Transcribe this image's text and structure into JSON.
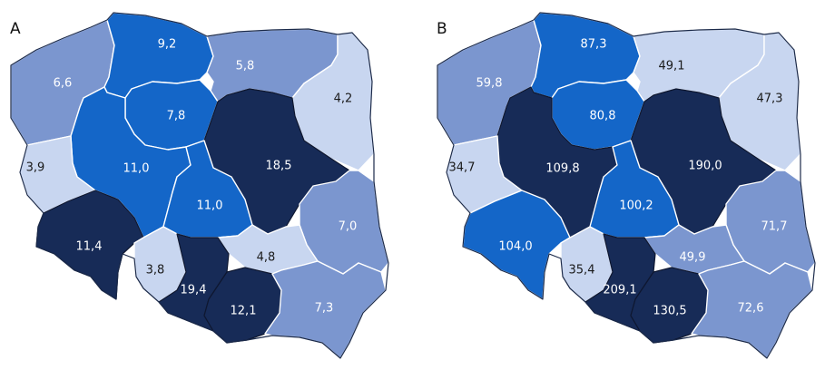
{
  "colors": {
    "tier_light": "#c8d6f0",
    "tier_mid": "#7b96cf",
    "tier_bright": "#1466c8",
    "tier_dark": "#172b57",
    "text_light": "#ffffff",
    "text_dark": "#1a1a1a"
  },
  "maps": [
    {
      "label": "A",
      "regions": [
        {
          "value": "6,6",
          "tier": "mid"
        },
        {
          "value": "9,2",
          "tier": "bright"
        },
        {
          "value": "5,8",
          "tier": "mid"
        },
        {
          "value": "4,2",
          "tier": "light"
        },
        {
          "value": "7,8",
          "tier": "bright"
        },
        {
          "value": "11,0",
          "tier": "bright"
        },
        {
          "value": "3,9",
          "tier": "light"
        },
        {
          "value": "18,5",
          "tier": "dark"
        },
        {
          "value": "11,0",
          "tier": "bright"
        },
        {
          "value": "11,4",
          "tier": "dark"
        },
        {
          "value": "3,8",
          "tier": "light"
        },
        {
          "value": "7,0",
          "tier": "mid"
        },
        {
          "value": "4,8",
          "tier": "light"
        },
        {
          "value": "19,4",
          "tier": "dark"
        },
        {
          "value": "12,1",
          "tier": "dark"
        },
        {
          "value": "7,3",
          "tier": "mid"
        }
      ]
    },
    {
      "label": "B",
      "regions": [
        {
          "value": "59,8",
          "tier": "mid"
        },
        {
          "value": "87,3",
          "tier": "bright"
        },
        {
          "value": "49,1",
          "tier": "light"
        },
        {
          "value": "47,3",
          "tier": "light"
        },
        {
          "value": "80,8",
          "tier": "bright"
        },
        {
          "value": "109,8",
          "tier": "dark"
        },
        {
          "value": "34,7",
          "tier": "light"
        },
        {
          "value": "190,0",
          "tier": "dark"
        },
        {
          "value": "100,2",
          "tier": "bright"
        },
        {
          "value": "104,0",
          "tier": "bright"
        },
        {
          "value": "35,4",
          "tier": "light"
        },
        {
          "value": "71,7",
          "tier": "mid"
        },
        {
          "value": "49,9",
          "tier": "mid"
        },
        {
          "value": "209,1",
          "tier": "dark"
        },
        {
          "value": "130,5",
          "tier": "dark"
        },
        {
          "value": "72,6",
          "tier": "mid"
        }
      ]
    }
  ]
}
